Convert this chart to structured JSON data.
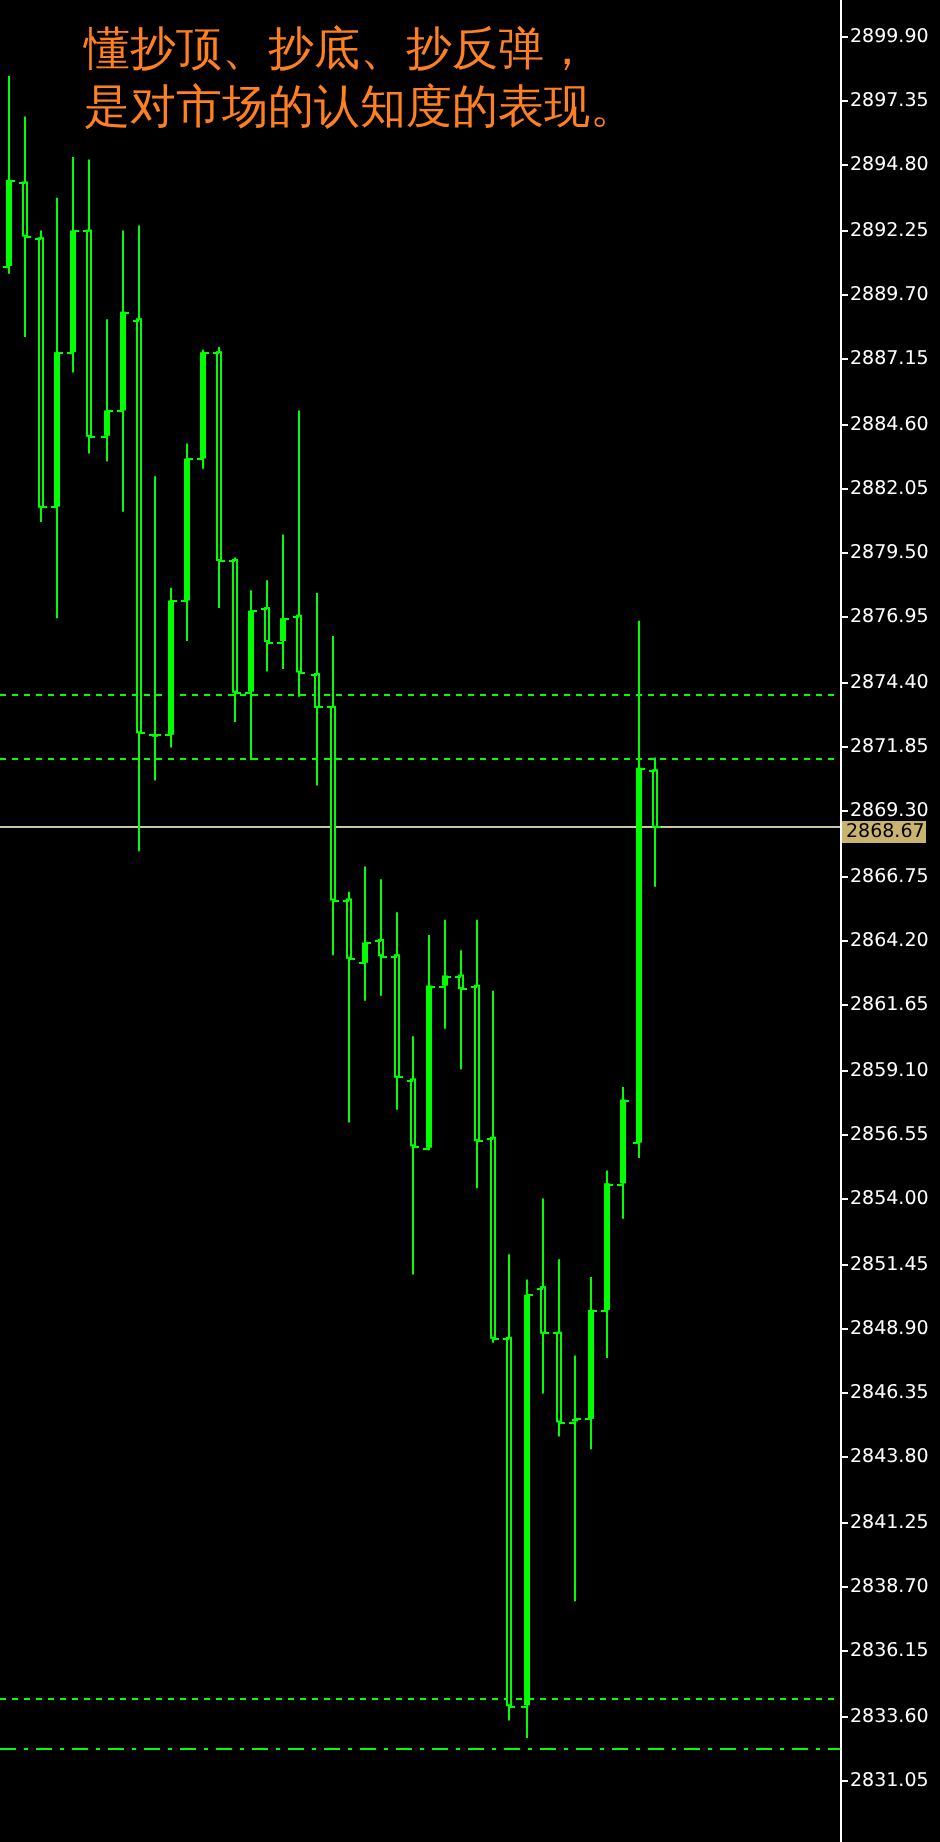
{
  "chart_data": {
    "type": "candlestick",
    "title": "懂抄顶、抄底、抄反弹，是对市场的认知度的表现。",
    "categories": [
      null,
      null,
      null,
      null,
      null,
      null,
      null,
      null,
      null,
      null,
      null,
      null,
      null,
      null,
      null,
      null,
      null,
      null,
      null,
      null,
      null,
      null,
      null,
      null,
      null,
      null,
      null,
      null,
      null,
      null,
      null,
      null,
      null,
      null,
      null,
      null,
      null,
      null,
      null,
      null,
      null,
      null,
      null,
      null,
      null,
      null,
      null,
      null,
      null,
      null,
      null,
      null
    ],
    "series": [
      {
        "color": "#00ff00",
        "ohlc": [
          [
            2890.8,
            2898.3,
            2890.5,
            2894.2
          ],
          [
            2894.1,
            2896.7,
            2888.0,
            2892.0
          ],
          [
            2891.9,
            2892.2,
            2880.7,
            2881.3
          ],
          [
            2881.3,
            2893.5,
            2876.9,
            2887.4
          ],
          [
            2887.4,
            2895.1,
            2886.6,
            2892.2
          ],
          [
            2892.2,
            2895.0,
            2883.4,
            2884.1
          ],
          [
            2884.1,
            2888.7,
            2883.1,
            2885.1
          ],
          [
            2885.1,
            2892.2,
            2881.1,
            2889.0
          ],
          [
            2888.7,
            2892.4,
            2867.7,
            2872.4
          ],
          [
            2872.3,
            2882.5,
            2870.5,
            2872.3
          ],
          [
            2872.3,
            2878.1,
            2871.8,
            2877.6
          ],
          [
            2877.6,
            2883.8,
            2876.0,
            2883.2
          ],
          [
            2883.2,
            2887.5,
            2882.8,
            2887.4
          ],
          [
            2887.4,
            2887.6,
            2877.3,
            2879.2
          ],
          [
            2879.2,
            2879.3,
            2872.8,
            2874.0
          ],
          [
            2874.0,
            2878.0,
            2871.3,
            2877.2
          ],
          [
            2877.3,
            2878.4,
            2874.8,
            2876.0
          ],
          [
            2876.0,
            2880.2,
            2874.9,
            2876.9
          ],
          [
            2877.0,
            2885.1,
            2873.8,
            2874.8
          ],
          [
            2874.7,
            2877.9,
            2870.3,
            2873.4
          ],
          [
            2873.4,
            2876.2,
            2863.6,
            2865.8
          ],
          [
            2865.8,
            2866.1,
            2857.0,
            2863.5
          ],
          [
            2863.3,
            2867.1,
            2861.8,
            2864.1
          ],
          [
            2864.2,
            2866.6,
            2862.0,
            2863.6
          ],
          [
            2863.6,
            2865.3,
            2857.5,
            2858.8
          ],
          [
            2858.7,
            2860.4,
            2851.0,
            2856.1
          ],
          [
            2856.0,
            2864.4,
            2855.9,
            2862.4
          ],
          [
            2862.4,
            2865.0,
            2860.7,
            2862.8
          ],
          [
            2862.8,
            2863.8,
            2859.1,
            2862.3
          ],
          [
            2862.4,
            2865.0,
            2854.4,
            2856.3
          ],
          [
            2856.4,
            2862.2,
            2848.3,
            2848.5
          ],
          [
            2848.5,
            2851.8,
            2833.4,
            2834.0
          ],
          [
            2834.0,
            2850.8,
            2832.7,
            2850.2
          ],
          [
            2850.5,
            2854.0,
            2846.3,
            2848.7
          ],
          [
            2848.7,
            2851.6,
            2844.6,
            2845.2
          ],
          [
            2845.2,
            2847.8,
            2838.1,
            2845.3
          ],
          [
            2845.3,
            2850.9,
            2844.1,
            2849.6
          ],
          [
            2849.6,
            2855.1,
            2847.7,
            2854.6
          ],
          [
            2854.6,
            2858.4,
            2853.2,
            2857.9
          ],
          [
            2856.2,
            2876.8,
            2855.6,
            2871.0
          ],
          [
            2870.9,
            2871.4,
            2866.3,
            2868.67
          ],
          null,
          null,
          null,
          null,
          null,
          null,
          null,
          null,
          null,
          null,
          null
        ]
      }
    ],
    "ylim": [
      2828.6,
      2901.3
    ],
    "yticks": [
      {
        "value": 2899.9,
        "label": "2899.90"
      },
      {
        "value": 2897.35,
        "label": "2897.35"
      },
      {
        "value": 2894.8,
        "label": "2894.80"
      },
      {
        "value": 2892.25,
        "label": "2892.25"
      },
      {
        "value": 2889.7,
        "label": "2889.70"
      },
      {
        "value": 2887.15,
        "label": "2887.15"
      },
      {
        "value": 2884.6,
        "label": "2884.60"
      },
      {
        "value": 2882.05,
        "label": "2882.05"
      },
      {
        "value": 2879.5,
        "label": "2879.50"
      },
      {
        "value": 2876.95,
        "label": "2876.95"
      },
      {
        "value": 2874.4,
        "label": "2874.40"
      },
      {
        "value": 2871.85,
        "label": "2871.85"
      },
      {
        "value": 2869.3,
        "label": "2869.30"
      },
      {
        "value": 2866.75,
        "label": "2866.75"
      },
      {
        "value": 2864.2,
        "label": "2864.20"
      },
      {
        "value": 2861.65,
        "label": "2861.65"
      },
      {
        "value": 2859.1,
        "label": "2859.10"
      },
      {
        "value": 2856.55,
        "label": "2856.55"
      },
      {
        "value": 2854.0,
        "label": "2854.00"
      },
      {
        "value": 2851.45,
        "label": "2851.45"
      },
      {
        "value": 2848.9,
        "label": "2848.90"
      },
      {
        "value": 2846.35,
        "label": "2846.35"
      },
      {
        "value": 2843.8,
        "label": "2843.80"
      },
      {
        "value": 2841.25,
        "label": "2841.25"
      },
      {
        "value": 2838.7,
        "label": "2838.70"
      },
      {
        "value": 2836.15,
        "label": "2836.15"
      },
      {
        "value": 2833.6,
        "label": "2833.60"
      },
      {
        "value": 2831.05,
        "label": "2831.05"
      }
    ],
    "ref_lines": [
      {
        "axis": "y",
        "value": 2873.9,
        "color": "#00ff00",
        "line_style": "dashed"
      },
      {
        "axis": "y",
        "value": 2871.4,
        "color": "#00ff00",
        "line_style": "dashed"
      },
      {
        "axis": "y",
        "value": 2834.3,
        "color": "#00ff00",
        "line_style": "dashed"
      },
      {
        "axis": "y",
        "value": 2832.3,
        "color": "#00ff00",
        "line_style": "dashdot"
      },
      {
        "axis": "y",
        "value": 2868.67,
        "label": "2868.67",
        "color": "#c8c8a0"
      }
    ],
    "tick_labels": "y",
    "grid": false
  }
}
